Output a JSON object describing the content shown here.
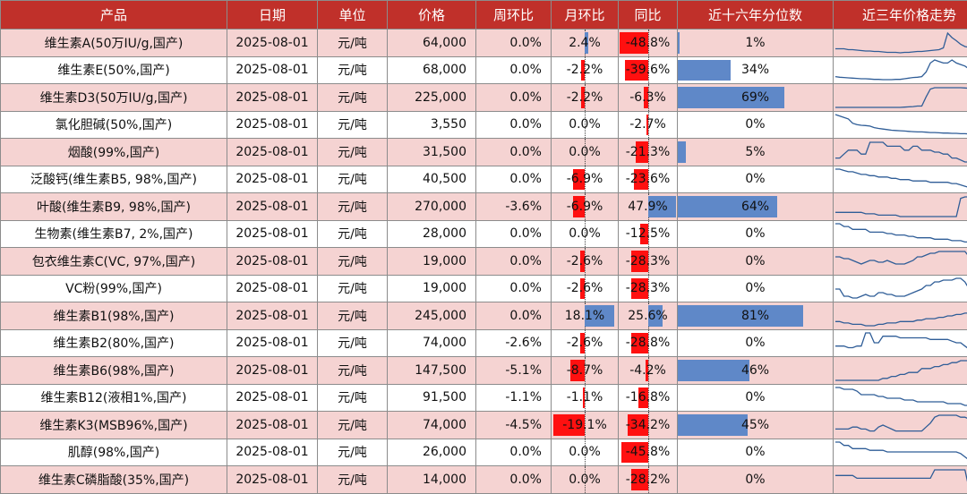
{
  "header": {
    "product": "产品",
    "date": "日期",
    "unit": "单位",
    "price": "价格",
    "wow": "周环比",
    "mom": "月环比",
    "yoy": "同比",
    "pctl": "近十六年分位数",
    "trend": "近三年价格走势"
  },
  "colors": {
    "header_bg": "#c0302a",
    "row_shade": "#f5d3d2",
    "neg_bar": "#ff1010",
    "pos_bar": "#5f88c8",
    "spark_line": "#2f5d97"
  },
  "rows": [
    {
      "product": "维生素A(50万IU/g,国产)",
      "date": "2025-08-01",
      "unit": "元/吨",
      "price": "64,000",
      "wow": "0.0%",
      "mom": "2.4%",
      "mom_v": 2.4,
      "yoy": "-48.8%",
      "yoy_v": -48.8,
      "pctl": "1%",
      "pctl_v": 1,
      "trend": [
        6,
        6,
        6,
        5.8,
        5.8,
        5.7,
        5.6,
        5.5,
        5.5,
        5.4,
        5.4,
        5.3,
        5.2,
        5.2,
        5.2,
        5.1,
        5.2,
        5.2,
        5.3,
        5.4,
        5.4,
        5.5,
        5.6,
        5.7,
        5.8,
        6.2,
        9.5,
        8.5,
        7.8,
        7,
        6.5,
        6.3,
        6.2,
        6.2,
        6.1
      ]
    },
    {
      "product": "维生素E(50%,国产)",
      "date": "2025-08-01",
      "unit": "元/吨",
      "price": "68,000",
      "wow": "0.0%",
      "mom": "-2.2%",
      "mom_v": -2.2,
      "yoy": "-39.6%",
      "yoy_v": -39.6,
      "pctl": "34%",
      "pctl_v": 34,
      "trend": [
        7.5,
        7.3,
        7.2,
        7.1,
        7,
        6.9,
        6.8,
        6.8,
        6.7,
        6.6,
        6.6,
        6.5,
        6.5,
        6.5,
        6.6,
        6.6,
        6.8,
        7,
        7.2,
        7.3,
        7.5,
        9,
        12,
        13,
        12.5,
        12,
        12,
        13,
        12,
        11.5,
        11,
        10,
        9,
        8.5,
        8.5
      ]
    },
    {
      "product": "维生素D3(50万IU/g,国产)",
      "date": "2025-08-01",
      "unit": "元/吨",
      "price": "225,000",
      "wow": "0.0%",
      "mom": "-2.2%",
      "mom_v": -2.2,
      "yoy": "-6.3%",
      "yoy_v": -6.3,
      "pctl": "69%",
      "pctl_v": 69,
      "trend": [
        6,
        6,
        6,
        6,
        6,
        6,
        6,
        6,
        6,
        6,
        6,
        6,
        6,
        6,
        6,
        6,
        6.1,
        6.2,
        6.3,
        6.5,
        6.5,
        10,
        13,
        13.5,
        13.5,
        13.5,
        13.5,
        13.5,
        13.5,
        13.5,
        13.4,
        13.3,
        13,
        12.8,
        12.5
      ]
    },
    {
      "product": "氯化胆碱(50%,国产)",
      "date": "2025-08-01",
      "unit": "元/吨",
      "price": "3,550",
      "wow": "0.0%",
      "mom": "0.0%",
      "mom_v": 0,
      "yoy": "-2.7%",
      "yoy_v": -2.7,
      "pctl": "0%",
      "pctl_v": 0,
      "trend": [
        12,
        11.5,
        11,
        10.5,
        9,
        8.5,
        8.3,
        8.2,
        8,
        7.5,
        7.2,
        7,
        6.8,
        6.6,
        6.5,
        6.4,
        6.3,
        6.2,
        6.1,
        6,
        6,
        5.9,
        5.8,
        5.8,
        5.7,
        5.6,
        5.6,
        5.5,
        5.5,
        5.4,
        5.4,
        5.3,
        5.3,
        5.2,
        5.2
      ]
    },
    {
      "product": "烟酸(99%,国产)",
      "date": "2025-08-01",
      "unit": "元/吨",
      "price": "31,500",
      "wow": "0.0%",
      "mom": "0.0%",
      "mom_v": 0,
      "yoy": "-21.3%",
      "yoy_v": -21.3,
      "pctl": "5%",
      "pctl_v": 5,
      "trend": [
        6,
        6,
        7,
        8,
        8,
        8,
        7,
        7,
        10,
        10,
        10,
        10,
        9,
        9,
        9,
        9,
        8,
        8,
        9,
        9,
        8,
        8,
        8,
        7.5,
        7.5,
        7,
        7,
        6,
        6,
        5.5,
        5,
        5,
        5,
        5,
        5
      ]
    },
    {
      "product": "泛酸钙(维生素B5, 98%,国产)",
      "date": "2025-08-01",
      "unit": "元/吨",
      "price": "40,500",
      "wow": "0.0%",
      "mom": "-6.9%",
      "mom_v": -6.9,
      "yoy": "-23.6%",
      "yoy_v": -23.6,
      "pctl": "0%",
      "pctl_v": 0,
      "trend": [
        12,
        12,
        11.5,
        11,
        11,
        10.5,
        10,
        10,
        9.5,
        9.5,
        9,
        9,
        9,
        8.5,
        8.5,
        8,
        8,
        8,
        7.5,
        7.5,
        7.5,
        7.5,
        7,
        7,
        7,
        7,
        7,
        6.5,
        6.5,
        6,
        5.5,
        5,
        4.5,
        4.5,
        4.5
      ]
    },
    {
      "product": "叶酸(维生素B9, 98%,国产)",
      "date": "2025-08-01",
      "unit": "元/吨",
      "price": "270,000",
      "wow": "-3.6%",
      "mom": "-6.9%",
      "mom_v": -6.9,
      "yoy": "47.9%",
      "yoy_v": 47.9,
      "pctl": "64%",
      "pctl_v": 64,
      "trend": [
        7,
        7,
        7,
        7,
        7,
        7,
        7,
        6.5,
        6.5,
        6.5,
        6,
        6,
        6,
        6,
        6,
        5.5,
        5.5,
        5.5,
        5.5,
        5.5,
        5.5,
        5.5,
        5.5,
        5.5,
        5.5,
        5.5,
        5.5,
        5.5,
        5.5,
        12,
        12.5,
        12.5,
        12.5,
        12,
        11.5
      ]
    },
    {
      "product": "生物素(维生素B7, 2%,国产)",
      "date": "2025-08-01",
      "unit": "元/吨",
      "price": "28,000",
      "wow": "0.0%",
      "mom": "0.0%",
      "mom_v": 0,
      "yoy": "-12.5%",
      "yoy_v": -12.5,
      "pctl": "0%",
      "pctl_v": 0,
      "trend": [
        12,
        12,
        11,
        11,
        10,
        10,
        10,
        10,
        9,
        9,
        9,
        9,
        8.5,
        8.5,
        8,
        8,
        8,
        7.5,
        7.5,
        7,
        7,
        7,
        7,
        6.5,
        6.5,
        6.5,
        6.5,
        6,
        6,
        6,
        5.5,
        5.5,
        5.5,
        5,
        5
      ]
    },
    {
      "product": "包衣维生素C(VC, 97%,国产)",
      "date": "2025-08-01",
      "unit": "元/吨",
      "price": "19,000",
      "wow": "0.0%",
      "mom": "-2.6%",
      "mom_v": -2.6,
      "yoy": "-28.3%",
      "yoy_v": -28.3,
      "pctl": "0%",
      "pctl_v": 0,
      "trend": [
        9,
        9,
        8.5,
        8.5,
        8,
        7.5,
        7,
        7.5,
        8,
        8,
        7.5,
        7.5,
        8,
        7.5,
        7,
        7,
        7,
        7.5,
        8,
        9,
        9,
        9.5,
        10,
        10,
        10.5,
        10.5,
        10.5,
        10.5,
        10.5,
        10.5,
        10.5,
        9,
        6,
        5,
        5
      ]
    },
    {
      "product": "VC粉(99%,国产)",
      "date": "2025-08-01",
      "unit": "元/吨",
      "price": "19,000",
      "wow": "0.0%",
      "mom": "-2.6%",
      "mom_v": -2.6,
      "yoy": "-28.3%",
      "yoy_v": -28.3,
      "pctl": "0%",
      "pctl_v": 0,
      "trend": [
        8,
        8,
        6,
        6,
        5.5,
        5.5,
        6,
        6.5,
        6,
        6,
        7,
        7,
        6.5,
        6.5,
        6,
        6,
        6,
        6.5,
        7,
        7.5,
        8,
        9,
        9,
        10,
        10,
        10.5,
        10.5,
        10.5,
        11,
        11,
        10,
        8,
        6,
        5.5,
        5.5
      ]
    },
    {
      "product": "维生素B1(98%,国产)",
      "date": "2025-08-01",
      "unit": "元/吨",
      "price": "245,000",
      "wow": "0.0%",
      "mom": "18.1%",
      "mom_v": 18.1,
      "yoy": "25.6%",
      "yoy_v": 25.6,
      "pctl": "81%",
      "pctl_v": 81,
      "trend": [
        7,
        7,
        6.5,
        6.5,
        6,
        6,
        6,
        5.5,
        5.5,
        5.5,
        6,
        6,
        6.5,
        6.5,
        6.5,
        7,
        7,
        7,
        7,
        7.5,
        7.5,
        8,
        8,
        8,
        8.5,
        8.5,
        9,
        9,
        9.5,
        9.5,
        10,
        10,
        11,
        12,
        12.5
      ]
    },
    {
      "product": "维生素B2(80%,国产)",
      "date": "2025-08-01",
      "unit": "元/吨",
      "price": "74,000",
      "wow": "-2.6%",
      "mom": "-2.6%",
      "mom_v": -2.6,
      "yoy": "-28.8%",
      "yoy_v": -28.8,
      "pctl": "0%",
      "pctl_v": 0,
      "trend": [
        7,
        7,
        7,
        6.5,
        6.5,
        7,
        7,
        11,
        11,
        8,
        8,
        10,
        10,
        10,
        10,
        9.5,
        9.5,
        9.5,
        9.5,
        9.5,
        9.5,
        9.5,
        9,
        9,
        9,
        9,
        9,
        8.5,
        8,
        8,
        7,
        6,
        5.5,
        5.5,
        5
      ]
    },
    {
      "product": "维生素B6(98%,国产)",
      "date": "2025-08-01",
      "unit": "元/吨",
      "price": "147,500",
      "wow": "-5.1%",
      "mom": "-8.7%",
      "mom_v": -8.7,
      "yoy": "-4.2%",
      "yoy_v": -4.2,
      "pctl": "46%",
      "pctl_v": 46,
      "trend": [
        6,
        6,
        6,
        6,
        6,
        6,
        6,
        6,
        6,
        6,
        6,
        6.5,
        6.5,
        7,
        7,
        7.5,
        7.5,
        8,
        8,
        8,
        9,
        9,
        9,
        9.5,
        9.5,
        10,
        10,
        10.5,
        10.5,
        11,
        11,
        11,
        10.5,
        10,
        9.5
      ]
    },
    {
      "product": "维生素B12(液相1%,国产)",
      "date": "2025-08-01",
      "unit": "元/吨",
      "price": "91,500",
      "wow": "-1.1%",
      "mom": "-1.1%",
      "mom_v": -1.1,
      "yoy": "-16.8%",
      "yoy_v": -16.8,
      "pctl": "0%",
      "pctl_v": 0,
      "trend": [
        12,
        12,
        11.5,
        11.5,
        11.5,
        11,
        10,
        10,
        10,
        10,
        9.5,
        9.5,
        9,
        9,
        9,
        9,
        8.5,
        8.5,
        8.5,
        8,
        8,
        8,
        8,
        8,
        8,
        8,
        7.5,
        7.5,
        7.5,
        7.5,
        7,
        7,
        6.5,
        6.5,
        6.5
      ]
    },
    {
      "product": "维生素K3(MSB96%,国产)",
      "date": "2025-08-01",
      "unit": "元/吨",
      "price": "74,000",
      "wow": "-4.5%",
      "mom": "-19.1%",
      "mom_v": -19.1,
      "yoy": "-34.2%",
      "yoy_v": -34.2,
      "pctl": "45%",
      "pctl_v": 45,
      "trend": [
        7.5,
        7.5,
        7.5,
        7.5,
        8,
        8,
        7.5,
        7.5,
        7,
        7,
        8,
        8.5,
        8,
        7.5,
        7,
        7,
        7,
        7,
        7,
        7,
        7,
        8,
        9,
        10.5,
        11,
        11,
        11,
        11,
        11,
        10.5,
        10.5,
        10,
        9,
        7,
        6
      ]
    },
    {
      "product": "肌醇(98%,国产)",
      "date": "2025-08-01",
      "unit": "元/吨",
      "price": "26,000",
      "wow": "0.0%",
      "mom": "0.0%",
      "mom_v": 0,
      "yoy": "-45.8%",
      "yoy_v": -45.8,
      "pctl": "0%",
      "pctl_v": 0,
      "trend": [
        12,
        12,
        11,
        11,
        10,
        10,
        10,
        10,
        9.5,
        9.5,
        9.5,
        9.5,
        9,
        9,
        9,
        9,
        9,
        9,
        9,
        9,
        9,
        9,
        9,
        9,
        9,
        9,
        9,
        9,
        9,
        8.5,
        7.5,
        6.5,
        6,
        6,
        6
      ]
    },
    {
      "product": "维生素C磷脂酸(35%,国产)",
      "date": "2025-08-01",
      "unit": "元/吨",
      "price": "14,000",
      "wow": "0.0%",
      "mom": "0.0%",
      "mom_v": 0,
      "yoy": "-28.2%",
      "yoy_v": -28.2,
      "pctl": "0%",
      "pctl_v": 0,
      "trend": [
        8,
        8,
        8,
        8,
        8,
        7.5,
        7.5,
        7.5,
        7.5,
        7.5,
        7.5,
        7.5,
        7.5,
        7.5,
        7.5,
        7.5,
        7.5,
        7.5,
        7.5,
        7.5,
        7.5,
        7.5,
        7.5,
        9,
        9,
        9,
        9,
        9,
        9,
        9,
        9,
        5.5,
        5.5,
        5.5,
        5.5
      ]
    }
  ]
}
